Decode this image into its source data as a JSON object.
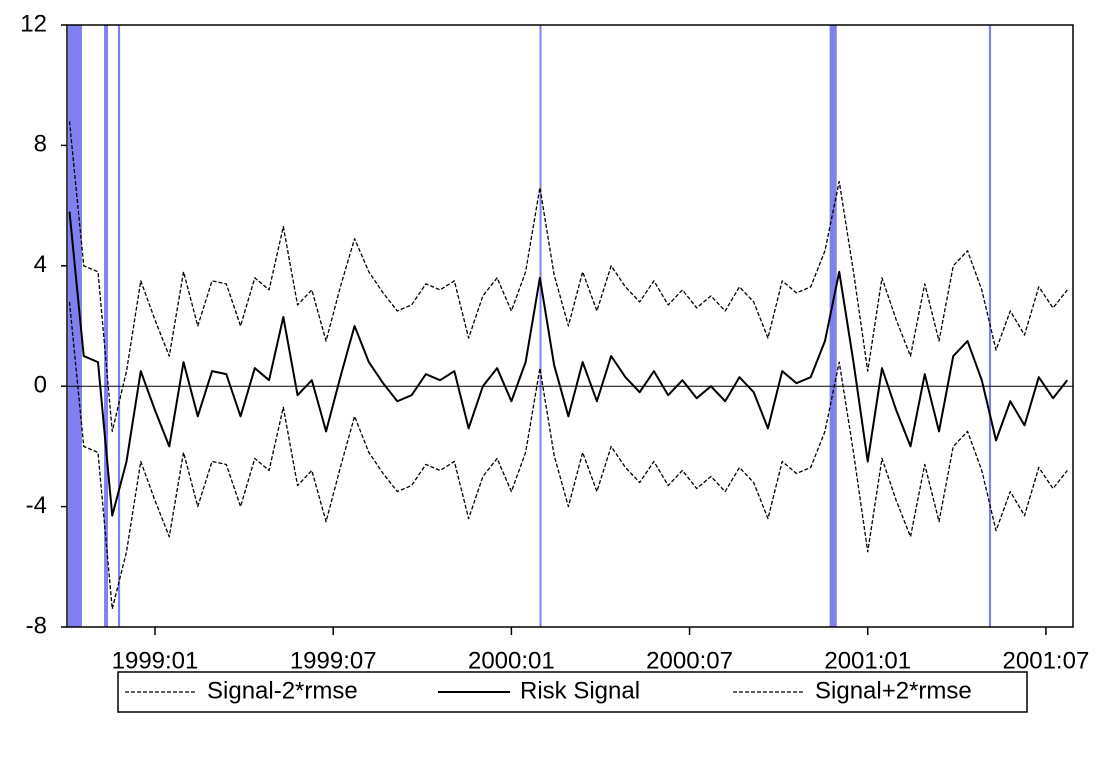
{
  "chart_data": {
    "type": "line",
    "x": [
      1998.76,
      1998.8,
      1998.84,
      1998.88,
      1998.92,
      1998.96,
      1999.0,
      1999.04,
      1999.08,
      1999.12,
      1999.16,
      1999.2,
      1999.24,
      1999.28,
      1999.32,
      1999.36,
      1999.4,
      1999.44,
      1999.48,
      1999.52,
      1999.56,
      1999.6,
      1999.64,
      1999.68,
      1999.72,
      1999.76,
      1999.8,
      1999.84,
      1999.88,
      1999.92,
      1999.96,
      2000.0,
      2000.04,
      2000.08,
      2000.12,
      2000.16,
      2000.2,
      2000.24,
      2000.28,
      2000.32,
      2000.36,
      2000.4,
      2000.44,
      2000.48,
      2000.52,
      2000.56,
      2000.6,
      2000.64,
      2000.68,
      2000.72,
      2000.76,
      2000.8,
      2000.84,
      2000.88,
      2000.92,
      2000.96,
      2001.0,
      2001.04,
      2001.08,
      2001.12,
      2001.16,
      2001.2,
      2001.24,
      2001.28,
      2001.32,
      2001.36,
      2001.4,
      2001.44,
      2001.48,
      2001.52,
      2001.56
    ],
    "series": [
      {
        "name": "Signal-2*rmse",
        "color": "#000000",
        "style": "dashed",
        "values": [
          2.8,
          -2.0,
          -2.2,
          -7.4,
          -5.5,
          -2.5,
          -3.8,
          -5.0,
          -2.2,
          -4.0,
          -2.5,
          -2.6,
          -4.0,
          -2.4,
          -2.8,
          -0.7,
          -3.3,
          -2.8,
          -4.5,
          -2.7,
          -1.0,
          -2.2,
          -2.9,
          -3.5,
          -3.3,
          -2.6,
          -2.8,
          -2.5,
          -4.4,
          -3.0,
          -2.4,
          -3.5,
          -2.2,
          0.6,
          -2.3,
          -4.0,
          -2.2,
          -3.5,
          -2.0,
          -2.7,
          -3.2,
          -2.5,
          -3.3,
          -2.8,
          -3.4,
          -3.0,
          -3.5,
          -2.7,
          -3.2,
          -4.4,
          -2.5,
          -2.9,
          -2.7,
          -1.5,
          0.8,
          -2.2,
          -5.5,
          -2.4,
          -3.8,
          -5.0,
          -2.6,
          -4.5,
          -2.0,
          -1.5,
          -2.8,
          -4.8,
          -3.5,
          -4.3,
          -2.7,
          -3.4,
          -2.8
        ]
      },
      {
        "name": "Risk Signal",
        "color": "#000000",
        "style": "solid",
        "values": [
          5.8,
          1.0,
          0.8,
          -4.3,
          -2.5,
          0.5,
          -0.8,
          -2.0,
          0.8,
          -1.0,
          0.5,
          0.4,
          -1.0,
          0.6,
          0.2,
          2.3,
          -0.3,
          0.2,
          -1.5,
          0.3,
          2.0,
          0.8,
          0.1,
          -0.5,
          -0.3,
          0.4,
          0.2,
          0.5,
          -1.4,
          0.0,
          0.6,
          -0.5,
          0.8,
          3.6,
          0.7,
          -1.0,
          0.8,
          -0.5,
          1.0,
          0.3,
          -0.2,
          0.5,
          -0.3,
          0.2,
          -0.4,
          0.0,
          -0.5,
          0.3,
          -0.2,
          -1.4,
          0.5,
          0.1,
          0.3,
          1.5,
          3.8,
          0.8,
          -2.5,
          0.6,
          -0.8,
          -2.0,
          0.4,
          -1.5,
          1.0,
          1.5,
          0.2,
          -1.8,
          -0.5,
          -1.3,
          0.3,
          -0.4,
          0.2
        ]
      },
      {
        "name": "Signal+2*rmse",
        "color": "#000000",
        "style": "dashed",
        "values": [
          8.8,
          4.0,
          3.8,
          -1.5,
          0.5,
          3.5,
          2.2,
          1.0,
          3.8,
          2.0,
          3.5,
          3.4,
          2.0,
          3.6,
          3.2,
          5.3,
          2.7,
          3.2,
          1.5,
          3.3,
          4.9,
          3.8,
          3.1,
          2.5,
          2.7,
          3.4,
          3.2,
          3.5,
          1.6,
          3.0,
          3.6,
          2.5,
          3.8,
          6.6,
          3.7,
          2.0,
          3.8,
          2.5,
          4.0,
          3.3,
          2.8,
          3.5,
          2.7,
          3.2,
          2.6,
          3.0,
          2.5,
          3.3,
          2.8,
          1.6,
          3.5,
          3.1,
          3.3,
          4.5,
          6.8,
          3.8,
          0.5,
          3.6,
          2.2,
          1.0,
          3.4,
          1.5,
          4.0,
          4.5,
          3.2,
          1.2,
          2.5,
          1.7,
          3.3,
          2.6,
          3.2
        ]
      }
    ],
    "shaded_spans": [
      [
        1998.756,
        1998.795
      ],
      [
        1998.857,
        1998.868
      ],
      [
        1998.896,
        1998.902
      ],
      [
        2000.079,
        2000.084
      ],
      [
        2000.893,
        2000.913
      ],
      [
        2001.34,
        2001.346
      ]
    ],
    "shade_color": "#8080f0",
    "xlim": [
      1998.753,
      2001.576
    ],
    "xticks": [
      {
        "value": 1999.0,
        "label": "1999:01"
      },
      {
        "value": 1999.5,
        "label": "1999:07"
      },
      {
        "value": 2000.0,
        "label": "2000:01"
      },
      {
        "value": 2000.5,
        "label": "2000:07"
      },
      {
        "value": 2001.0,
        "label": "2001:01"
      },
      {
        "value": 2001.5,
        "label": "2001:07"
      }
    ],
    "ylim": [
      -8,
      12
    ],
    "yticks": [
      -8,
      -4,
      0,
      4,
      8,
      12
    ],
    "zero_line": true,
    "legend": "bottom"
  }
}
